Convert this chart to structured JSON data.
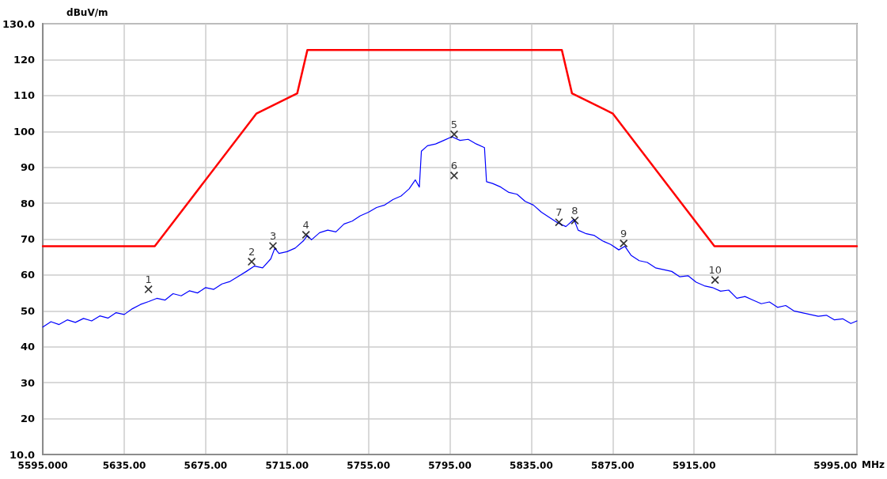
{
  "chart_data": {
    "type": "line",
    "ylabel": "dBuV/m",
    "xlabel": "MHz",
    "xlim": [
      5595,
      5995
    ],
    "xticks": [
      {
        "value": 5595,
        "label": "5595.000"
      },
      {
        "value": 5635,
        "label": "5635.00"
      },
      {
        "value": 5675,
        "label": "5675.00"
      },
      {
        "value": 5715,
        "label": "5715.00"
      },
      {
        "value": 5755,
        "label": "5755.00"
      },
      {
        "value": 5795,
        "label": "5795.00"
      },
      {
        "value": 5835,
        "label": "5835.00"
      },
      {
        "value": 5875,
        "label": "5875.00"
      },
      {
        "value": 5915,
        "label": "5915.00"
      },
      {
        "value": 5955,
        "label": null
      },
      {
        "value": 5995,
        "label": "5995.00"
      }
    ],
    "ylim": [
      10,
      130
    ],
    "yticks": [
      {
        "value": 10,
        "label": "10.0"
      },
      20,
      30,
      40,
      50,
      60,
      70,
      80,
      90,
      100,
      110,
      120,
      {
        "value": 130,
        "label": "130.0"
      }
    ],
    "grid": true,
    "marker": "none",
    "line_style": "solid",
    "series": [
      {
        "color": "#ff0000",
        "x": [
          5595,
          5650,
          5700,
          5720,
          5725,
          5850,
          5855,
          5875,
          5925,
          5995
        ],
        "values": [
          68,
          68,
          105,
          110.6,
          122.7,
          122.7,
          110.6,
          105,
          68,
          68
        ]
      },
      {
        "color": "#0000ff",
        "x": [
          5595,
          5599,
          5603,
          5607,
          5611,
          5615,
          5619,
          5623,
          5627,
          5631,
          5635,
          5639,
          5643,
          5647,
          5651,
          5655,
          5659,
          5663,
          5667,
          5671,
          5675,
          5679,
          5683,
          5687,
          5691,
          5695,
          5699,
          5703,
          5707,
          5709,
          5711,
          5715,
          5719,
          5723,
          5725,
          5727,
          5731,
          5735,
          5739,
          5743,
          5747,
          5751,
          5755,
          5759,
          5763,
          5767,
          5771,
          5775,
          5778,
          5780,
          5781,
          5784,
          5788,
          5792,
          5796,
          5800,
          5804,
          5808,
          5812,
          5813,
          5816,
          5820,
          5824,
          5828,
          5832,
          5836,
          5840,
          5844,
          5848,
          5852,
          5856,
          5858,
          5862,
          5866,
          5870,
          5874,
          5878,
          5881,
          5884,
          5888,
          5892,
          5896,
          5900,
          5904,
          5908,
          5912,
          5916,
          5920,
          5924,
          5928,
          5932,
          5936,
          5940,
          5944,
          5948,
          5952,
          5956,
          5960,
          5964,
          5968,
          5972,
          5976,
          5980,
          5984,
          5988,
          5992,
          5995
        ],
        "values": [
          45.5,
          47.0,
          46.2,
          47.5,
          46.8,
          47.9,
          47.2,
          48.6,
          48.0,
          49.5,
          49.0,
          50.6,
          51.8,
          52.6,
          53.5,
          53.0,
          54.8,
          54.2,
          55.6,
          55.0,
          56.5,
          56.0,
          57.5,
          58.2,
          59.6,
          61.0,
          62.5,
          62.0,
          64.5,
          67.5,
          66.0,
          66.5,
          67.5,
          69.5,
          71.0,
          69.8,
          71.8,
          72.5,
          72.0,
          74.2,
          75.0,
          76.5,
          77.5,
          78.8,
          79.5,
          81.0,
          82.0,
          84.0,
          86.5,
          84.5,
          94.5,
          96.0,
          96.5,
          97.5,
          98.5,
          97.5,
          97.8,
          96.5,
          95.5,
          86.0,
          85.5,
          84.5,
          83.0,
          82.5,
          80.5,
          79.5,
          77.5,
          76.0,
          74.5,
          73.5,
          75.5,
          72.5,
          71.5,
          71.0,
          69.5,
          68.5,
          67.0,
          68.0,
          65.5,
          64.0,
          63.5,
          62.0,
          61.5,
          61.0,
          59.5,
          59.8,
          58.0,
          57.0,
          56.5,
          55.5,
          55.8,
          53.5,
          54.0,
          53.0,
          52.0,
          52.5,
          51.0,
          51.5,
          50.0,
          49.5,
          49.0,
          48.5,
          48.8,
          47.5,
          47.8,
          46.5,
          47.2
        ]
      }
    ],
    "annotations": [
      {
        "text": "1",
        "x": 5646.9,
        "y": 56.0
      },
      {
        "text": "2",
        "x": 5697.6,
        "y": 63.7
      },
      {
        "text": "3",
        "x": 5708.1,
        "y": 68.1
      },
      {
        "text": "4",
        "x": 5724.3,
        "y": 71.2
      },
      {
        "text": "5",
        "x": 5797.1,
        "y": 99.2
      },
      {
        "text": "6",
        "x": 5797.1,
        "y": 87.7
      },
      {
        "text": "7",
        "x": 5848.6,
        "y": 74.7
      },
      {
        "text": "8",
        "x": 5856.4,
        "y": 75.2
      },
      {
        "text": "9",
        "x": 5880.4,
        "y": 68.8
      },
      {
        "text": "10",
        "x": 5925.3,
        "y": 58.6
      }
    ]
  }
}
